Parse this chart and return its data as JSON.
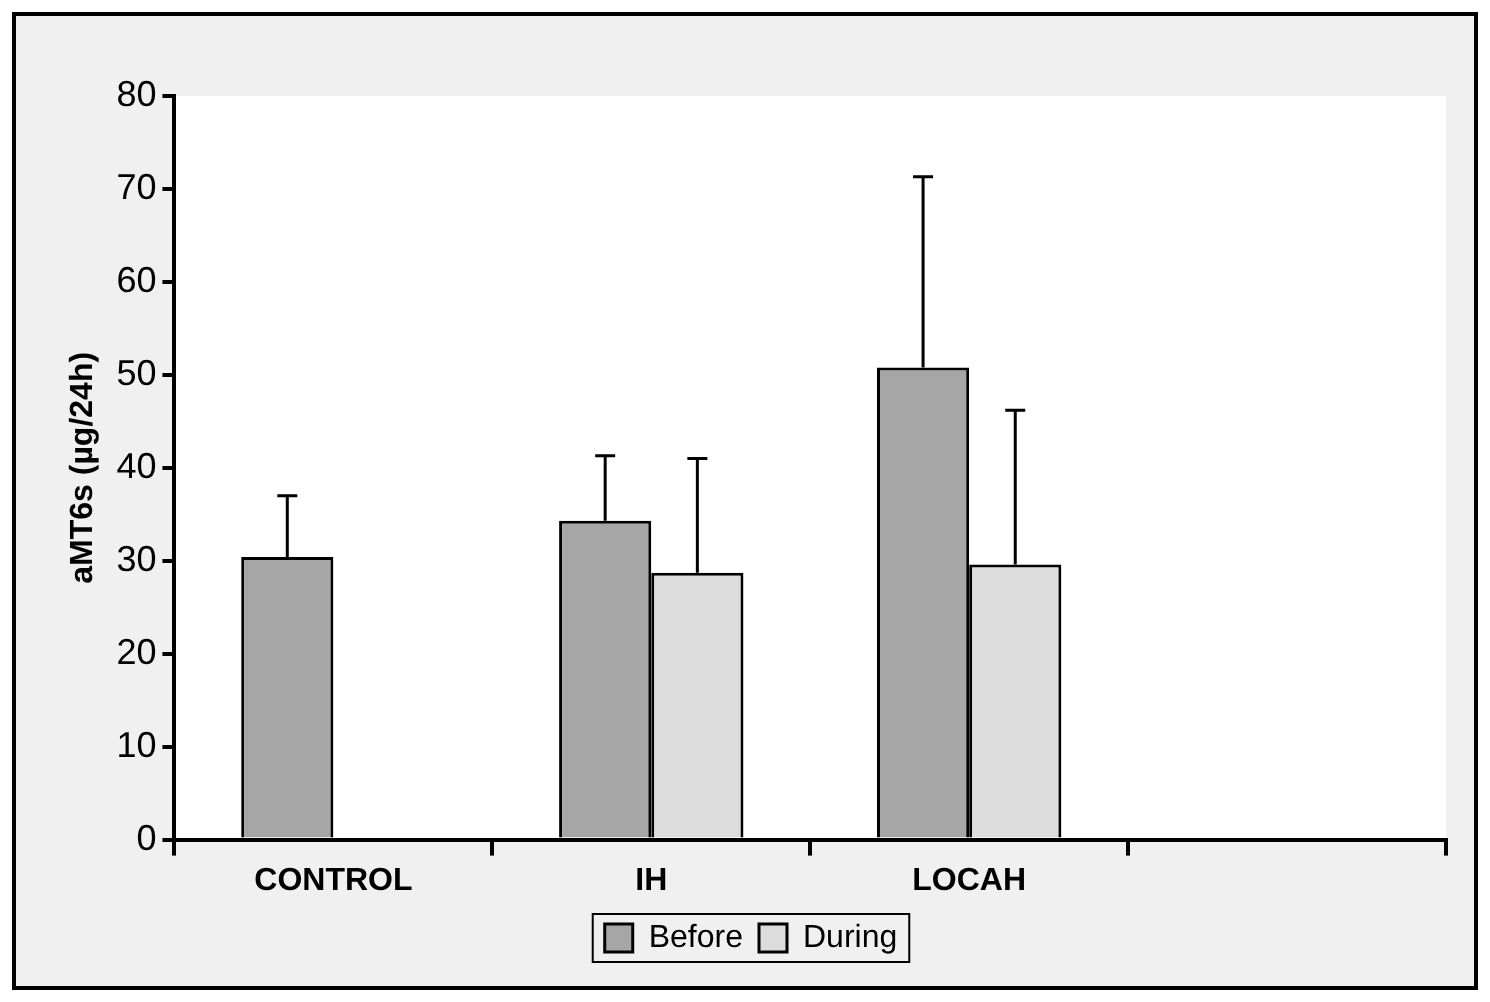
{
  "chart_data": {
    "type": "bar",
    "ylabel": "aMT6s (µg/24h)",
    "categories": [
      "CONTROL",
      "IH",
      "LOCAH",
      null
    ],
    "series": [
      {
        "name": "Before",
        "color": "#a6a6a6",
        "values": [
          30.4,
          34.3,
          50.8,
          null
        ],
        "errors": [
          [
            30.4,
            37
          ],
          [
            34.3,
            41.3
          ],
          [
            50.8,
            71.3
          ],
          null
        ]
      },
      {
        "name": "During",
        "color": "#dcdcdc",
        "values": [
          null,
          28.7,
          29.6,
          null
        ],
        "errors": [
          null,
          [
            28.7,
            41
          ],
          [
            29.6,
            46.2
          ],
          null
        ]
      }
    ],
    "ylim": [
      0,
      80
    ],
    "yticks": [
      0,
      10,
      20,
      30,
      40,
      50,
      60,
      70,
      80
    ],
    "grid": false,
    "legend": "bottom"
  }
}
